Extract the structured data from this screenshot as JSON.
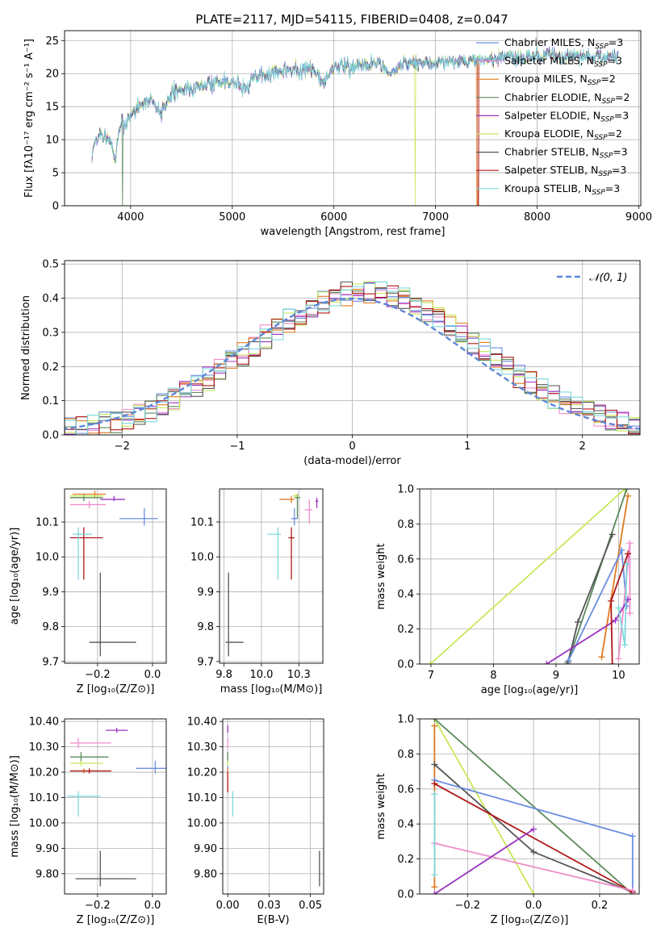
{
  "title": "PLATE=2117, MJD=54115, FIBERID=0408, z=0.047",
  "models": [
    {
      "name": "Chabrier MILES",
      "nssp": "3",
      "color": "#6b8ee0"
    },
    {
      "name": "Salpeter MILES",
      "nssp": "3",
      "color": "#f08ccc"
    },
    {
      "name": "Kroupa MILES",
      "nssp": "2",
      "color": "#e07a20"
    },
    {
      "name": "Chabrier ELODIE",
      "nssp": "2",
      "color": "#5a8a5a"
    },
    {
      "name": "Salpeter ELODIE",
      "nssp": "3",
      "color": "#9c35c0"
    },
    {
      "name": "Kroupa ELODIE",
      "nssp": "2",
      "color": "#c8e85a"
    },
    {
      "name": "Chabrier STELIB",
      "nssp": "3",
      "color": "#555555"
    },
    {
      "name": "Salpeter STELIB",
      "nssp": "3",
      "color": "#b01818"
    },
    {
      "name": "Kroupa STELIB",
      "nssp": "3",
      "color": "#7dd8dc"
    }
  ],
  "chart_data": [
    {
      "type": "line",
      "name": "spectrum",
      "xlabel": "wavelength [Angstrom, rest frame]",
      "ylabel": "Flux [fλ10⁻¹⁷ erg cm⁻² s⁻¹ A⁻¹]",
      "xlim": [
        3350,
        9020
      ],
      "ylim": [
        0,
        26.5
      ],
      "xticks": [
        4000,
        5000,
        6000,
        7000,
        8000,
        9000
      ],
      "yticks": [
        0,
        5,
        10,
        15,
        20,
        25
      ],
      "legend": "top-right",
      "x_range": [
        3620,
        8800
      ],
      "points": [
        [
          3620,
          8
        ],
        [
          3700,
          11
        ],
        [
          3800,
          10
        ],
        [
          3850,
          7
        ],
        [
          3900,
          13
        ],
        [
          3950,
          12
        ],
        [
          4000,
          14
        ],
        [
          4100,
          15
        ],
        [
          4200,
          16
        ],
        [
          4300,
          14
        ],
        [
          4400,
          17
        ],
        [
          4600,
          18
        ],
        [
          4800,
          18.5
        ],
        [
          5000,
          19
        ],
        [
          5150,
          17.5
        ],
        [
          5200,
          19.5
        ],
        [
          5400,
          20
        ],
        [
          5600,
          20.5
        ],
        [
          5800,
          20.5
        ],
        [
          5890,
          18.5
        ],
        [
          6000,
          21
        ],
        [
          6200,
          21
        ],
        [
          6400,
          21.5
        ],
        [
          6563,
          20
        ],
        [
          6700,
          21.5
        ],
        [
          6900,
          21.5
        ],
        [
          7100,
          22
        ],
        [
          7300,
          22
        ],
        [
          7500,
          22
        ],
        [
          7700,
          22.5
        ],
        [
          8000,
          22.5
        ],
        [
          8200,
          22.8
        ],
        [
          8400,
          22.5
        ],
        [
          8600,
          22.7
        ],
        [
          8800,
          22.5
        ]
      ],
      "dropouts": [
        {
          "model": "Chabrier ELODIE",
          "x": 3920
        },
        {
          "model": "Kroupa ELODIE",
          "x": 6800
        },
        {
          "model": "Kroupa MILES",
          "x": 7410
        },
        {
          "model": "Salpeter STELIB",
          "x": 7420
        }
      ]
    },
    {
      "type": "line",
      "name": "residual-histogram",
      "xlabel": "(data-model)/error",
      "ylabel": "Normed distribution",
      "xlim": [
        -2.5,
        2.5
      ],
      "ylim": [
        0,
        0.51
      ],
      "xticks": [
        -2,
        -1,
        0,
        1,
        2
      ],
      "yticks": [
        0.0,
        0.1,
        0.2,
        0.3,
        0.4,
        0.5
      ],
      "reference_label": "𝒩(0, 1)",
      "bin_width": 0.1
    },
    {
      "type": "scatter",
      "name": "age-vs-Z",
      "xlabel": "Z [log₁₀(Z/Z⊙)]",
      "ylabel": "age  [log₁₀(age/yr)]",
      "xlim": [
        -0.32,
        0.05
      ],
      "ylim": [
        9.695,
        10.195
      ],
      "xticks": [
        -0.2,
        0.0
      ],
      "yticks": [
        9.7,
        9.8,
        9.9,
        10.0,
        10.1
      ],
      "points": [
        {
          "model": "Chabrier MILES",
          "x": -0.03,
          "y": 10.11,
          "xerr": [
            0.09,
            0.05
          ],
          "yerr": [
            0.02,
            0.03
          ]
        },
        {
          "model": "Salpeter MILES",
          "x": -0.23,
          "y": 10.15,
          "xerr": [
            0.07,
            0.06
          ],
          "yerr": [
            0.01,
            0.01
          ]
        },
        {
          "model": "Kroupa MILES",
          "x": -0.21,
          "y": 10.18,
          "xerr": [
            0.08,
            0.04
          ],
          "yerr": [
            0.01,
            0.01
          ]
        },
        {
          "model": "Chabrier ELODIE",
          "x": -0.25,
          "y": 10.17,
          "xerr": [
            0.05,
            0.07
          ],
          "yerr": [
            0.01,
            0.01
          ]
        },
        {
          "model": "Salpeter ELODIE",
          "x": -0.14,
          "y": 10.165,
          "xerr": [
            0.05,
            0.04
          ],
          "yerr": [
            0.005,
            0.01
          ]
        },
        {
          "model": "Kroupa ELODIE",
          "x": -0.22,
          "y": 10.175,
          "xerr": [
            0.08,
            0.04
          ],
          "yerr": [
            0.005,
            0.005
          ]
        },
        {
          "model": "Chabrier STELIB",
          "x": -0.19,
          "y": 9.755,
          "xerr": [
            0.04,
            0.13
          ],
          "yerr": [
            0.04,
            0.2
          ]
        },
        {
          "model": "Salpeter STELIB",
          "x": -0.25,
          "y": 10.055,
          "xerr": [
            0.05,
            0.07
          ],
          "yerr": [
            0.12,
            0.03
          ]
        },
        {
          "model": "Kroupa STELIB",
          "x": -0.27,
          "y": 10.065,
          "xerr": [
            0.02,
            0.05
          ],
          "yerr": [
            0.13,
            0.02
          ]
        }
      ]
    },
    {
      "type": "scatter",
      "name": "age-vs-mass",
      "xlabel": "mass [log₁₀(M/M⊙)]",
      "ylabel": "",
      "xlim": [
        9.72,
        10.41
      ],
      "ylim": [
        9.695,
        10.195
      ],
      "xticks": [
        9.75,
        10.0,
        10.25
      ],
      "yticks": [
        9.7,
        9.8,
        9.9,
        10.0,
        10.1
      ],
      "points": [
        {
          "model": "Chabrier MILES",
          "x": 10.22,
          "y": 10.11,
          "xerr": [
            0.02,
            0.02
          ],
          "yerr": [
            0.02,
            0.03
          ]
        },
        {
          "model": "Salpeter MILES",
          "x": 10.32,
          "y": 10.135,
          "xerr": [
            0.03,
            0.02
          ],
          "yerr": [
            0.04,
            0.03
          ]
        },
        {
          "model": "Kroupa MILES",
          "x": 10.2,
          "y": 10.165,
          "xerr": [
            0.08,
            0.02
          ],
          "yerr": [
            0.01,
            0.01
          ]
        },
        {
          "model": "Chabrier ELODIE",
          "x": 10.24,
          "y": 10.17,
          "xerr": [
            0.02,
            0.02
          ],
          "yerr": [
            0.06,
            0.01
          ]
        },
        {
          "model": "Salpeter ELODIE",
          "x": 10.37,
          "y": 10.16,
          "xerr": [
            0.01,
            0.01
          ],
          "yerr": [
            0.02,
            0.01
          ]
        },
        {
          "model": "Kroupa ELODIE",
          "x": 10.23,
          "y": 10.175,
          "xerr": [
            0.02,
            0.02
          ],
          "yerr": [
            0.005,
            0.005
          ]
        },
        {
          "model": "Chabrier STELIB",
          "x": 9.78,
          "y": 9.755,
          "xerr": [
            0.02,
            0.1
          ],
          "yerr": [
            0.04,
            0.2
          ]
        },
        {
          "model": "Salpeter STELIB",
          "x": 10.2,
          "y": 10.055,
          "xerr": [
            0.02,
            0.02
          ],
          "yerr": [
            0.12,
            0.03
          ]
        },
        {
          "model": "Kroupa STELIB",
          "x": 10.11,
          "y": 10.065,
          "xerr": [
            0.07,
            0.02
          ],
          "yerr": [
            0.13,
            0.02
          ]
        }
      ]
    },
    {
      "type": "line",
      "name": "mass-weight-vs-age",
      "xlabel": "age  [log₁₀(age/yr)]",
      "ylabel": "mass weight",
      "xlim": [
        6.82,
        10.33
      ],
      "ylim": [
        0,
        1
      ],
      "xticks": [
        7,
        8,
        9,
        10
      ],
      "yticks": [
        0.0,
        0.2,
        0.4,
        0.6,
        0.8,
        1.0
      ],
      "series": [
        {
          "model": "Kroupa ELODIE",
          "x": [
            6.99,
            10.1
          ],
          "y": [
            0.0,
            1.0
          ]
        },
        {
          "model": "Kroupa MILES",
          "x": [
            9.73,
            10.15
          ],
          "y": [
            0.04,
            0.96
          ]
        },
        {
          "model": "Chabrier ELODIE",
          "x": [
            9.18,
            10.13
          ],
          "y": [
            0.0,
            1.0
          ]
        },
        {
          "model": "Chabrier STELIB",
          "x": [
            9.19,
            9.35,
            9.9
          ],
          "y": [
            0.01,
            0.24,
            0.74
          ]
        },
        {
          "model": "Chabrier MILES",
          "x": [
            9.2,
            10.05,
            10.13
          ],
          "y": [
            0.02,
            0.65,
            0.33
          ]
        },
        {
          "model": "Salpeter MILES",
          "x": [
            10.0,
            10.18,
            10.18
          ],
          "y": [
            0.03,
            0.69,
            0.29
          ]
        },
        {
          "model": "Salpeter ELODIE",
          "x": [
            8.85,
            9.95,
            10.15
          ],
          "y": [
            0.0,
            0.25,
            0.37
          ]
        },
        {
          "model": "Salpeter STELIB",
          "x": [
            9.9,
            9.88,
            10.15
          ],
          "y": [
            0.0,
            0.36,
            0.63
          ]
        },
        {
          "model": "Kroupa STELIB",
          "x": [
            10.0,
            10.1,
            10.13
          ],
          "y": [
            0.32,
            0.11,
            0.57
          ]
        }
      ]
    },
    {
      "type": "scatter",
      "name": "mass-vs-Z",
      "xlabel": "Z [log₁₀(Z/Z⊙)]",
      "ylabel": "mass [log₁₀(M/M⊙)]",
      "xlim": [
        -0.32,
        0.05
      ],
      "ylim": [
        9.72,
        10.41
      ],
      "xticks": [
        -0.2,
        0.0
      ],
      "yticks": [
        9.8,
        9.9,
        10.0,
        10.1,
        10.2,
        10.3,
        10.4
      ],
      "points": [
        {
          "model": "Chabrier MILES",
          "x": 0.01,
          "y": 10.215,
          "xerr": [
            0.07,
            0.04
          ],
          "yerr": [
            0.02,
            0.03
          ]
        },
        {
          "model": "Salpeter MILES",
          "x": -0.27,
          "y": 10.315,
          "xerr": [
            0.03,
            0.12
          ],
          "yerr": [
            0.02,
            0.02
          ]
        },
        {
          "model": "Kroupa MILES",
          "x": -0.25,
          "y": 10.205,
          "xerr": [
            0.05,
            0.1
          ],
          "yerr": [
            0.01,
            0.01
          ]
        },
        {
          "model": "Chabrier ELODIE",
          "x": -0.26,
          "y": 10.26,
          "xerr": [
            0.04,
            0.1
          ],
          "yerr": [
            0.02,
            0.02
          ]
        },
        {
          "model": "Salpeter ELODIE",
          "x": -0.13,
          "y": 10.365,
          "xerr": [
            0.04,
            0.04
          ],
          "yerr": [
            0.01,
            0.01
          ]
        },
        {
          "model": "Kroupa ELODIE",
          "x": -0.26,
          "y": 10.235,
          "xerr": [
            0.04,
            0.08
          ],
          "yerr": [
            0.01,
            0.01
          ]
        },
        {
          "model": "Chabrier STELIB",
          "x": -0.19,
          "y": 9.78,
          "xerr": [
            0.09,
            0.13
          ],
          "yerr": [
            0.03,
            0.11
          ]
        },
        {
          "model": "Salpeter STELIB",
          "x": -0.23,
          "y": 10.205,
          "xerr": [
            0.07,
            0.08
          ],
          "yerr": [
            0.01,
            0.01
          ]
        },
        {
          "model": "Kroupa STELIB",
          "x": -0.27,
          "y": 10.105,
          "xerr": [
            0.04,
            0.08
          ],
          "yerr": [
            0.08,
            0.02
          ]
        }
      ]
    },
    {
      "type": "scatter",
      "name": "mass-vs-EBV",
      "xlabel": "E(B-V)",
      "ylabel": "",
      "xlim": [
        -0.003,
        0.058
      ],
      "ylim": [
        9.72,
        10.41
      ],
      "xticks": [
        0.0,
        0.025,
        0.05
      ],
      "yticks": [
        9.8,
        9.9,
        10.0,
        10.1,
        10.2,
        10.3,
        10.4
      ],
      "points": [
        {
          "model": "Chabrier MILES",
          "x": 0.0,
          "y": 10.215,
          "xerr": [
            0,
            0
          ],
          "yerr": [
            0.02,
            0.03
          ]
        },
        {
          "model": "Salpeter MILES",
          "x": 0.0,
          "y": 10.315,
          "xerr": [
            0,
            0
          ],
          "yerr": [
            0.02,
            0.02
          ]
        },
        {
          "model": "Kroupa MILES",
          "x": 0.0,
          "y": 10.205,
          "xerr": [
            0,
            0
          ],
          "yerr": [
            0.01,
            0.01
          ]
        },
        {
          "model": "Chabrier ELODIE",
          "x": 0.0,
          "y": 10.26,
          "xerr": [
            0,
            0
          ],
          "yerr": [
            0.02,
            0.02
          ]
        },
        {
          "model": "Salpeter ELODIE",
          "x": 0.0,
          "y": 10.365,
          "xerr": [
            0,
            0
          ],
          "yerr": [
            0.01,
            0.02
          ]
        },
        {
          "model": "Kroupa ELODIE",
          "x": 0.0,
          "y": 10.235,
          "xerr": [
            0,
            0
          ],
          "yerr": [
            0.01,
            0.01
          ]
        },
        {
          "model": "Chabrier STELIB",
          "x": 0.0555,
          "y": 9.78,
          "xerr": [
            0,
            0
          ],
          "yerr": [
            0.03,
            0.11
          ]
        },
        {
          "model": "Salpeter STELIB",
          "x": 0.0,
          "y": 10.19,
          "xerr": [
            0,
            0
          ],
          "yerr": [
            0.07,
            0.01
          ]
        },
        {
          "model": "Kroupa STELIB",
          "x": 0.003,
          "y": 10.105,
          "xerr": [
            0,
            0
          ],
          "yerr": [
            0.08,
            0.02
          ]
        }
      ]
    },
    {
      "type": "line",
      "name": "mass-weight-vs-Z",
      "xlabel": "Z [log₁₀(Z/Z⊙)]",
      "ylabel": "mass weight",
      "xlim": [
        -0.345,
        0.32
      ],
      "ylim": [
        0,
        1
      ],
      "xticks": [
        -0.2,
        0.0,
        0.2
      ],
      "yticks": [
        0.0,
        0.2,
        0.4,
        0.6,
        0.8,
        1.0
      ],
      "series": [
        {
          "model": "Kroupa ELODIE",
          "x": [
            -0.3,
            0.0
          ],
          "y": [
            1.0,
            0.0
          ]
        },
        {
          "model": "Chabrier ELODIE",
          "x": [
            -0.3,
            0.3
          ],
          "y": [
            1.0,
            0.0
          ]
        },
        {
          "model": "Kroupa MILES",
          "x": [
            -0.3,
            -0.3
          ],
          "y": [
            0.96,
            0.04
          ]
        },
        {
          "model": "Chabrier STELIB",
          "x": [
            -0.3,
            0.0,
            0.3
          ],
          "y": [
            0.74,
            0.24,
            0.01
          ]
        },
        {
          "model": "Chabrier MILES",
          "x": [
            -0.3,
            0.3,
            0.3
          ],
          "y": [
            0.65,
            0.33,
            0.02
          ]
        },
        {
          "model": "Salpeter STELIB",
          "x": [
            -0.3,
            0.3
          ],
          "y": [
            0.63,
            0.01
          ]
        },
        {
          "model": "Salpeter MILES",
          "x": [
            -0.3,
            0.3
          ],
          "y": [
            0.29,
            0.02
          ]
        },
        {
          "model": "Salpeter ELODIE",
          "x": [
            -0.3,
            0.0
          ],
          "y": [
            0.0,
            0.37
          ]
        },
        {
          "model": "Kroupa STELIB",
          "x": [
            -0.3,
            -0.3
          ],
          "y": [
            0.57,
            0.11
          ]
        }
      ]
    }
  ]
}
